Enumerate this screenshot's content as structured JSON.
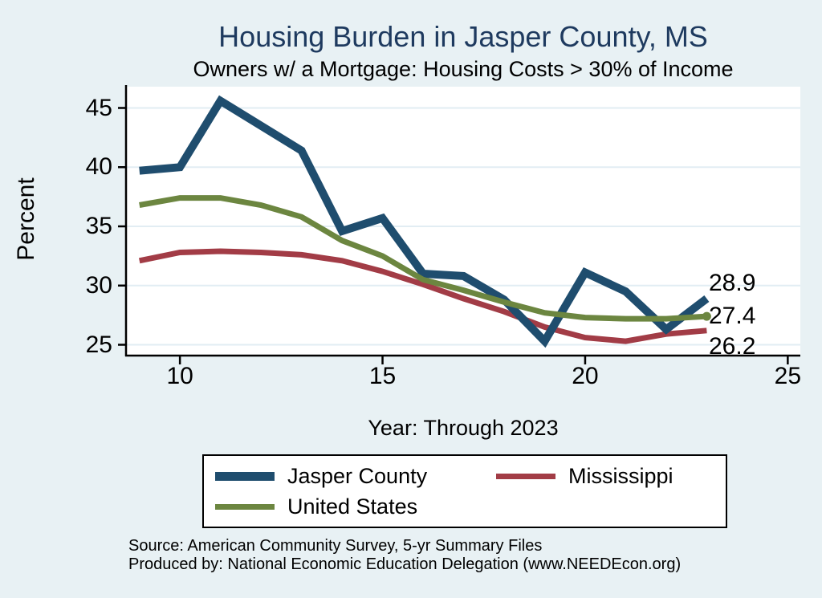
{
  "chart_data": {
    "type": "line",
    "title": "Housing Burden in Jasper County, MS",
    "subtitle": "Owners w/ a Mortgage: Housing Costs > 30% of Income",
    "xlabel": "Year: Through 2023",
    "ylabel": "Percent",
    "x": [
      9,
      10,
      11,
      12,
      13,
      14,
      15,
      16,
      17,
      18,
      19,
      20,
      21,
      22,
      23
    ],
    "xticks": [
      10,
      15,
      20,
      25
    ],
    "yticks": [
      25,
      30,
      35,
      40,
      45
    ],
    "xlim": [
      8.67,
      25.31
    ],
    "ylim": [
      25,
      45
    ],
    "grid": true,
    "legend_position": "bottom",
    "series": [
      {
        "name": "Jasper County",
        "color": "#1F4D6E",
        "line_width": 10,
        "values": [
          39.7,
          40.0,
          45.6,
          43.5,
          41.4,
          34.6,
          35.7,
          31.0,
          30.8,
          28.8,
          25.3,
          31.1,
          29.5,
          26.3,
          28.9
        ],
        "end_label": "28.9",
        "end_dot": false
      },
      {
        "name": "Mississippi",
        "color": "#A23C46",
        "line_width": 7,
        "values": [
          32.1,
          32.8,
          32.9,
          32.8,
          32.6,
          32.1,
          31.2,
          30.1,
          28.9,
          27.8,
          26.5,
          25.6,
          25.3,
          25.9,
          26.2
        ],
        "end_label": "26.2",
        "end_dot": false
      },
      {
        "name": "United States",
        "color": "#6C8640",
        "line_width": 7,
        "values": [
          36.8,
          37.4,
          37.4,
          36.8,
          35.8,
          33.8,
          32.5,
          30.5,
          29.6,
          28.6,
          27.7,
          27.3,
          27.2,
          27.2,
          27.4
        ],
        "end_label": "27.4",
        "end_dot": true
      }
    ]
  },
  "footer": {
    "source": "Source: American Community Survey, 5-yr Summary Files",
    "produced_by": "Produced by: National Economic Education Delegation (www.NEEDEcon.org)"
  },
  "colors": {
    "background": "#E8F1F4",
    "plot_background": "#FFFFFF",
    "grid": "#E2EDF3",
    "axis": "#000000",
    "title": "#1E3A5F"
  }
}
